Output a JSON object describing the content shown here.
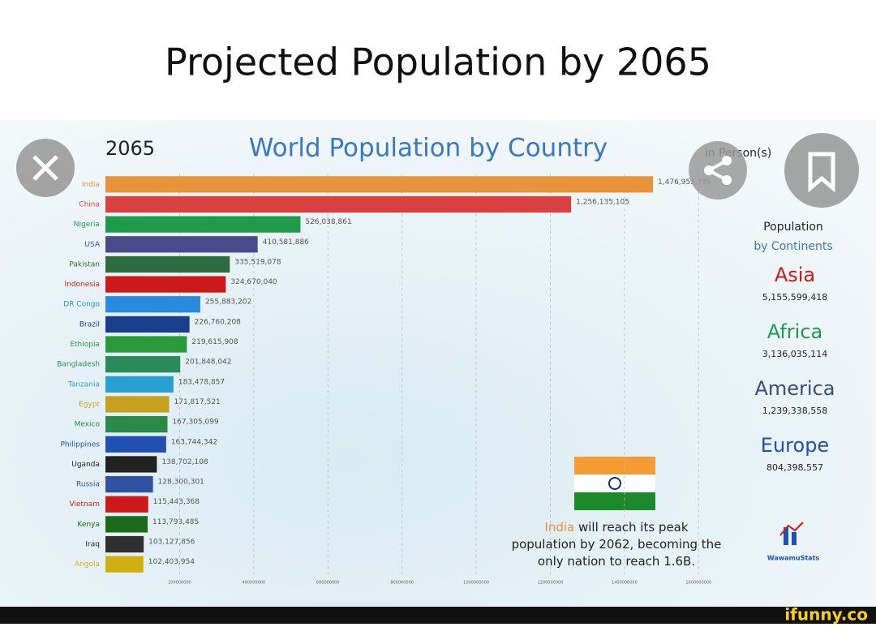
{
  "header": {
    "title": "Projected Population by 2065"
  },
  "chart_data": {
    "type": "bar",
    "orientation": "horizontal",
    "title": "World Population by Country",
    "period_label": "2065",
    "unit_label": "in Person(s)",
    "categories": [
      "India",
      "China",
      "Nigeria",
      "USA",
      "Pakistan",
      "Indonesia",
      "DR Congo",
      "Brazil",
      "Ethiopia",
      "Bangladesh",
      "Tanzania",
      "Egypt",
      "Mexico",
      "Philippines",
      "Uganda",
      "Russia",
      "Vietnam",
      "Kenya",
      "Iraq",
      "Angola"
    ],
    "values": [
      1476953785,
      1256135105,
      526038861,
      410581886,
      335519078,
      324670040,
      255883202,
      226760208,
      219615908,
      201848042,
      183478857,
      171817521,
      167305099,
      163744342,
      138702108,
      128300301,
      115443368,
      113793485,
      103127856,
      102403954
    ],
    "value_labels": [
      "1,476,953,785",
      "1,256,135,105",
      "526,038,861",
      "410,581,886",
      "335,519,078",
      "324,670,040",
      "255,883,202",
      "226,760,208",
      "219,615,908",
      "201,848,042",
      "183,478,857",
      "171,817,521",
      "167,305,099",
      "163,744,342",
      "138,702,108",
      "128,300,301",
      "115,443,368",
      "113,793,485",
      "103,127,856",
      "102,403,954"
    ],
    "colors": [
      "#e8923a",
      "#d94040",
      "#1f9a4a",
      "#4a4a8a",
      "#2e6b3e",
      "#cc1a1a",
      "#2a8ae0",
      "#1a3f8a",
      "#2a9a3a",
      "#2a8a5a",
      "#2aa0d0",
      "#c8a020",
      "#2a8a4a",
      "#2050b0",
      "#222222",
      "#3050a0",
      "#cc1a1a",
      "#1a6a1a",
      "#303030",
      "#d0b010"
    ],
    "xlim": [
      0,
      1700000000
    ],
    "xticks": [
      200000000,
      400000000,
      600000000,
      800000000,
      1000000000,
      1200000000,
      1400000000,
      1600000000
    ],
    "grid": true,
    "annotation": [
      "India",
      " will reach its peak population by 2062, becoming the only nation to reach 1.6B."
    ],
    "panel": {
      "title": "Population",
      "subtitle": "by Continents",
      "items": [
        {
          "name": "Asia",
          "color": "#cc1a1a",
          "value": 5155599418,
          "value_label": "5,155,599,418"
        },
        {
          "name": "Africa",
          "color": "#1f9a4a",
          "value": 3136035114,
          "value_label": "3,136,035,114"
        },
        {
          "name": "America",
          "color": "#3a4a7a",
          "value": 1239338558,
          "value_label": "1,239,338,558"
        },
        {
          "name": "Europe",
          "color": "#2050b0",
          "value": 804398557,
          "value_label": "804,398,557"
        }
      ]
    },
    "brand": "WawamuStats"
  },
  "footer": {
    "watermark": "ifunny.co"
  }
}
